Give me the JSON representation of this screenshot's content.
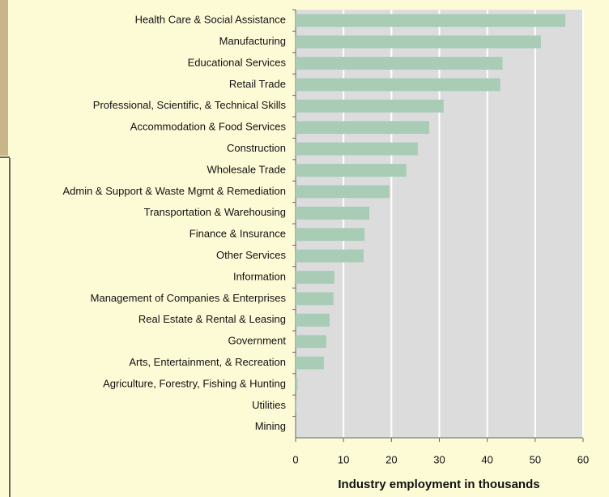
{
  "chart_data": {
    "type": "bar",
    "orientation": "horizontal",
    "categories": [
      "Health Care & Social Assistance",
      "Manufacturing",
      "Educational Services",
      "Retail Trade",
      "Professional, Scientific, & Technical Skills",
      "Accommodation & Food Services",
      "Construction",
      "Wholesale Trade",
      "Admin & Support & Waste Mgmt & Remediation",
      "Transportation & Warehousing",
      "Finance & Insurance",
      "Other Services",
      "Information",
      "Management of Companies & Enterprises",
      "Real Estate & Rental & Leasing",
      "Government",
      "Arts, Entertainment, & Recreation",
      "Agriculture, Forestry, Fishing & Hunting",
      "Utilities",
      "Mining"
    ],
    "values": [
      56.3,
      51.2,
      43.2,
      42.7,
      30.9,
      27.9,
      25.5,
      23.1,
      19.6,
      15.4,
      14.4,
      14.2,
      8.1,
      7.9,
      7.1,
      6.4,
      5.9,
      0.4,
      0.2,
      0
    ],
    "color": "#a9ccb7",
    "x_label": "Industry employment in thousands",
    "xlim": [
      0,
      60
    ],
    "xticks": [
      0,
      10,
      20,
      30,
      40,
      50,
      60
    ],
    "grid": true
  }
}
